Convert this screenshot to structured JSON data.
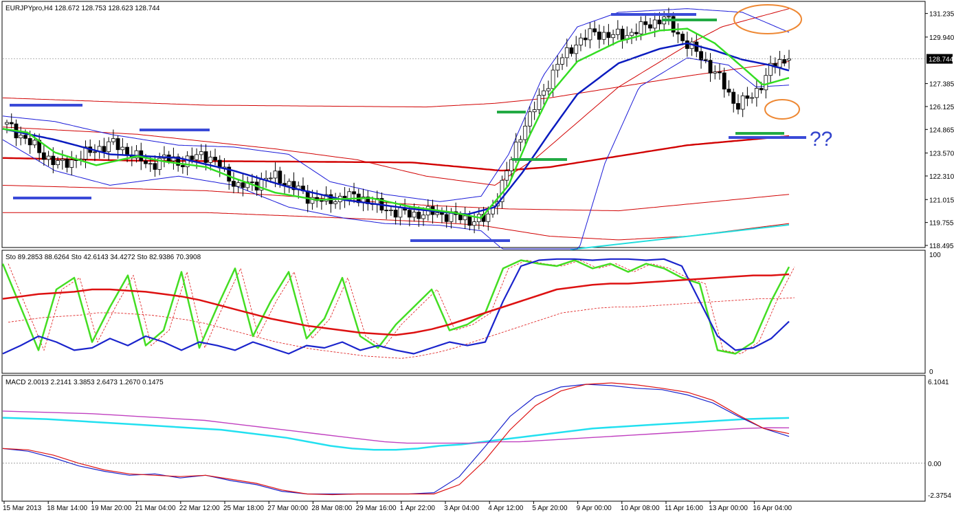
{
  "main": {
    "header": "EURJPYpro,H4  128.672 128.753 128.623 128.744",
    "price_ticks": [
      "131.235",
      "129.940",
      "128.744",
      "127.385",
      "126.125",
      "124.865",
      "123.570",
      "122.310",
      "121.015",
      "119.755",
      "118.495"
    ],
    "current_price_label": "128.744",
    "annotation": "??"
  },
  "stochastic": {
    "header": "Sto 89.2853 88.6264  Sto 42.6143 34.4272  Sto 82.9386 70.3908",
    "ticks": [
      "100",
      "0"
    ]
  },
  "macd": {
    "header": "MACD 2.0013 2.2141 3.3853 2.6473 1.2670 0.1475",
    "ticks": [
      "6.1041",
      "0.00",
      "-2.3754"
    ]
  },
  "time_labels": [
    "15 Mar 2013",
    "18 Mar 14:00",
    "19 Mar 20:00",
    "21 Mar 04:00",
    "22 Mar 12:00",
    "25 Mar 18:00",
    "27 Mar 00:00",
    "28 Mar 08:00",
    "29 Mar 16:00",
    "1 Apr 22:00",
    "3 Apr 04:00",
    "4 Apr 12:00",
    "5 Apr 20:00",
    "9 Apr 00:00",
    "10 Apr 08:00",
    "11 Apr 16:00",
    "13 Apr 00:00",
    "16 Apr 04:00"
  ],
  "colors": {
    "up_candle": "#ffffff",
    "down_candle": "#000000",
    "bollinger": "#1a1ad8",
    "envelope": "#d10000",
    "fast_ma": "#33dd22",
    "slow_ma": "#0a1bbf",
    "trend_cyan": "#22dddd",
    "level_blue": "#3a4ad8",
    "level_green": "#22aa44",
    "circle": "#ee8833",
    "annotation": "#3344cc",
    "stoch_green": "#44dd22",
    "stoch_blue": "#1a24cc",
    "stoch_red": "#dd1111",
    "macd_cyan": "#22e0f0",
    "macd_magenta": "#c040c0",
    "macd_blue": "#1a24cc",
    "macd_red": "#dd1111"
  },
  "chart_data": [
    {
      "type": "candlestick",
      "title": "EURJPYpro,H4",
      "ylim": [
        118.495,
        131.9
      ],
      "x": [
        "15 Mar 2013",
        "18 Mar 14:00",
        "19 Mar 20:00",
        "21 Mar 04:00",
        "22 Mar 12:00",
        "25 Mar 18:00",
        "27 Mar 00:00",
        "28 Mar 08:00",
        "29 Mar 16:00",
        "1 Apr 22:00",
        "3 Apr 04:00",
        "4 Apr 12:00",
        "5 Apr 20:00",
        "9 Apr 00:00",
        "10 Apr 08:00",
        "11 Apr 16:00",
        "13 Apr 00:00",
        "16 Apr 04:00"
      ],
      "close_path": [
        125.1,
        124.4,
        123.5,
        122.9,
        123.3,
        123.8,
        124.1,
        123.5,
        122.9,
        123.3,
        123.0,
        123.6,
        122.8,
        121.7,
        121.9,
        122.3,
        121.8,
        121.1,
        120.9,
        121.2,
        121.1,
        120.6,
        120.3,
        120.2,
        120.3,
        120.1,
        119.9,
        119.9,
        122.2,
        124.9,
        126.6,
        128.5,
        129.6,
        130.2,
        130.0,
        130.1,
        130.6,
        131.0,
        129.8,
        128.9,
        127.8,
        126.2,
        126.7,
        128.3,
        128.744
      ],
      "last": {
        "open": 128.672,
        "high": 128.753,
        "low": 128.623,
        "close": 128.744
      }
    },
    {
      "type": "line",
      "title": "Sto",
      "ylim": [
        0,
        100
      ],
      "series": [
        {
          "values": [
            92,
            55,
            18,
            70,
            80,
            25,
            55,
            82,
            22,
            35,
            85,
            20,
            55,
            88,
            30,
            60,
            85,
            28,
            45,
            80,
            30,
            20,
            40,
            55,
            70,
            35,
            40,
            50,
            88,
            95,
            92,
            90,
            95,
            88,
            92,
            85,
            92,
            88,
            80,
            75,
            18,
            15,
            25,
            60,
            89.2853
          ]
        },
        {
          "values": [
            15,
            22,
            30,
            25,
            18,
            20,
            28,
            22,
            30,
            25,
            18,
            25,
            22,
            18,
            25,
            20,
            15,
            22,
            20,
            25,
            18,
            22,
            18,
            15,
            20,
            25,
            22,
            25,
            60,
            90,
            95,
            96,
            96,
            95,
            96,
            96,
            95,
            96,
            90,
            60,
            30,
            18,
            20,
            28,
            42.6143
          ]
        },
        {
          "values": [
            62,
            64,
            66,
            67,
            68,
            70,
            70,
            69,
            68,
            66,
            64,
            61,
            57,
            53,
            49,
            45,
            42,
            39,
            37,
            35,
            33,
            32,
            31,
            33,
            36,
            40,
            45,
            50,
            55,
            60,
            65,
            70,
            72,
            74,
            75,
            75,
            76,
            77,
            78,
            79,
            80,
            81,
            82,
            82,
            82.9386
          ]
        }
      ]
    },
    {
      "type": "line",
      "title": "MACD",
      "ylim": [
        -2.3754,
        6.1041
      ],
      "series": [
        {
          "values": [
            3.4,
            3.35,
            3.3,
            3.2,
            3.1,
            3.0,
            2.9,
            2.8,
            2.7,
            2.6,
            2.5,
            2.3,
            2.1,
            1.9,
            1.6,
            1.3,
            1.1,
            1.0,
            1.0,
            1.1,
            1.3,
            1.4,
            1.6,
            1.8,
            2.0,
            2.2,
            2.4,
            2.6,
            2.7,
            2.8,
            2.9,
            3.0,
            3.1,
            3.2,
            3.3,
            3.35,
            3.3853
          ]
        },
        {
          "values": [
            3.9,
            3.85,
            3.8,
            3.75,
            3.7,
            3.6,
            3.5,
            3.4,
            3.3,
            3.2,
            3.0,
            2.8,
            2.6,
            2.4,
            2.2,
            2.0,
            1.8,
            1.6,
            1.5,
            1.5,
            1.5,
            1.5,
            1.6,
            1.6,
            1.7,
            1.8,
            1.9,
            2.0,
            2.1,
            2.2,
            2.3,
            2.4,
            2.5,
            2.6,
            2.65,
            2.6473
          ]
        },
        {
          "values": [
            1.1,
            0.9,
            0.4,
            -0.2,
            -0.6,
            -0.9,
            -0.8,
            -1.1,
            -0.9,
            -1.3,
            -1.6,
            -2.1,
            -2.3,
            -2.3,
            -2.3,
            -2.3,
            -2.3,
            -2.2,
            -1.0,
            1.2,
            3.5,
            5.0,
            5.7,
            5.9,
            5.8,
            5.6,
            5.5,
            5.1,
            4.5,
            3.5,
            2.6,
            2.0013
          ]
        },
        {
          "values": [
            1.1,
            1.0,
            0.6,
            0.0,
            -0.5,
            -0.8,
            -0.9,
            -1.0,
            -0.9,
            -1.2,
            -1.5,
            -2.0,
            -2.3,
            -2.35,
            -2.3,
            -2.3,
            -2.3,
            -2.3,
            -1.6,
            0.2,
            2.5,
            4.3,
            5.4,
            5.9,
            6.0,
            5.85,
            5.6,
            5.3,
            4.7,
            3.6,
            2.6,
            2.2141
          ]
        }
      ]
    }
  ]
}
